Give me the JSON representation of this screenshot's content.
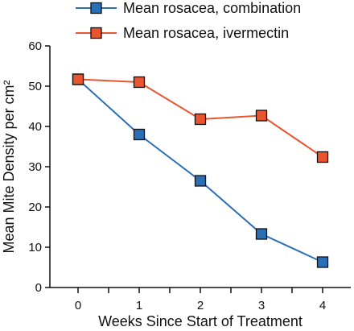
{
  "chart_data": {
    "type": "line",
    "title": "",
    "xlabel": "Weeks Since Start of Treatment",
    "ylabel": "Mean Mite Density per cm²",
    "x": [
      0,
      1,
      2,
      3,
      4
    ],
    "x_tick_labels": [
      "0",
      "1",
      "2",
      "3",
      "4"
    ],
    "ylim": [
      0,
      60
    ],
    "y_ticks": [
      0,
      10,
      20,
      30,
      40,
      50,
      60
    ],
    "y_tick_labels": [
      "0",
      "10",
      "20",
      "30",
      "40",
      "50",
      "60"
    ],
    "grid": false,
    "legend_position": "top",
    "series": [
      {
        "name": "Mean rosacea, combination",
        "color": "#2a6eb5",
        "values": [
          51.7,
          38.0,
          26.5,
          13.3,
          6.3
        ]
      },
      {
        "name": "Mean rosacea, ivermectin",
        "color": "#e8552e",
        "values": [
          51.7,
          51.0,
          41.8,
          42.7,
          32.4
        ]
      }
    ]
  }
}
